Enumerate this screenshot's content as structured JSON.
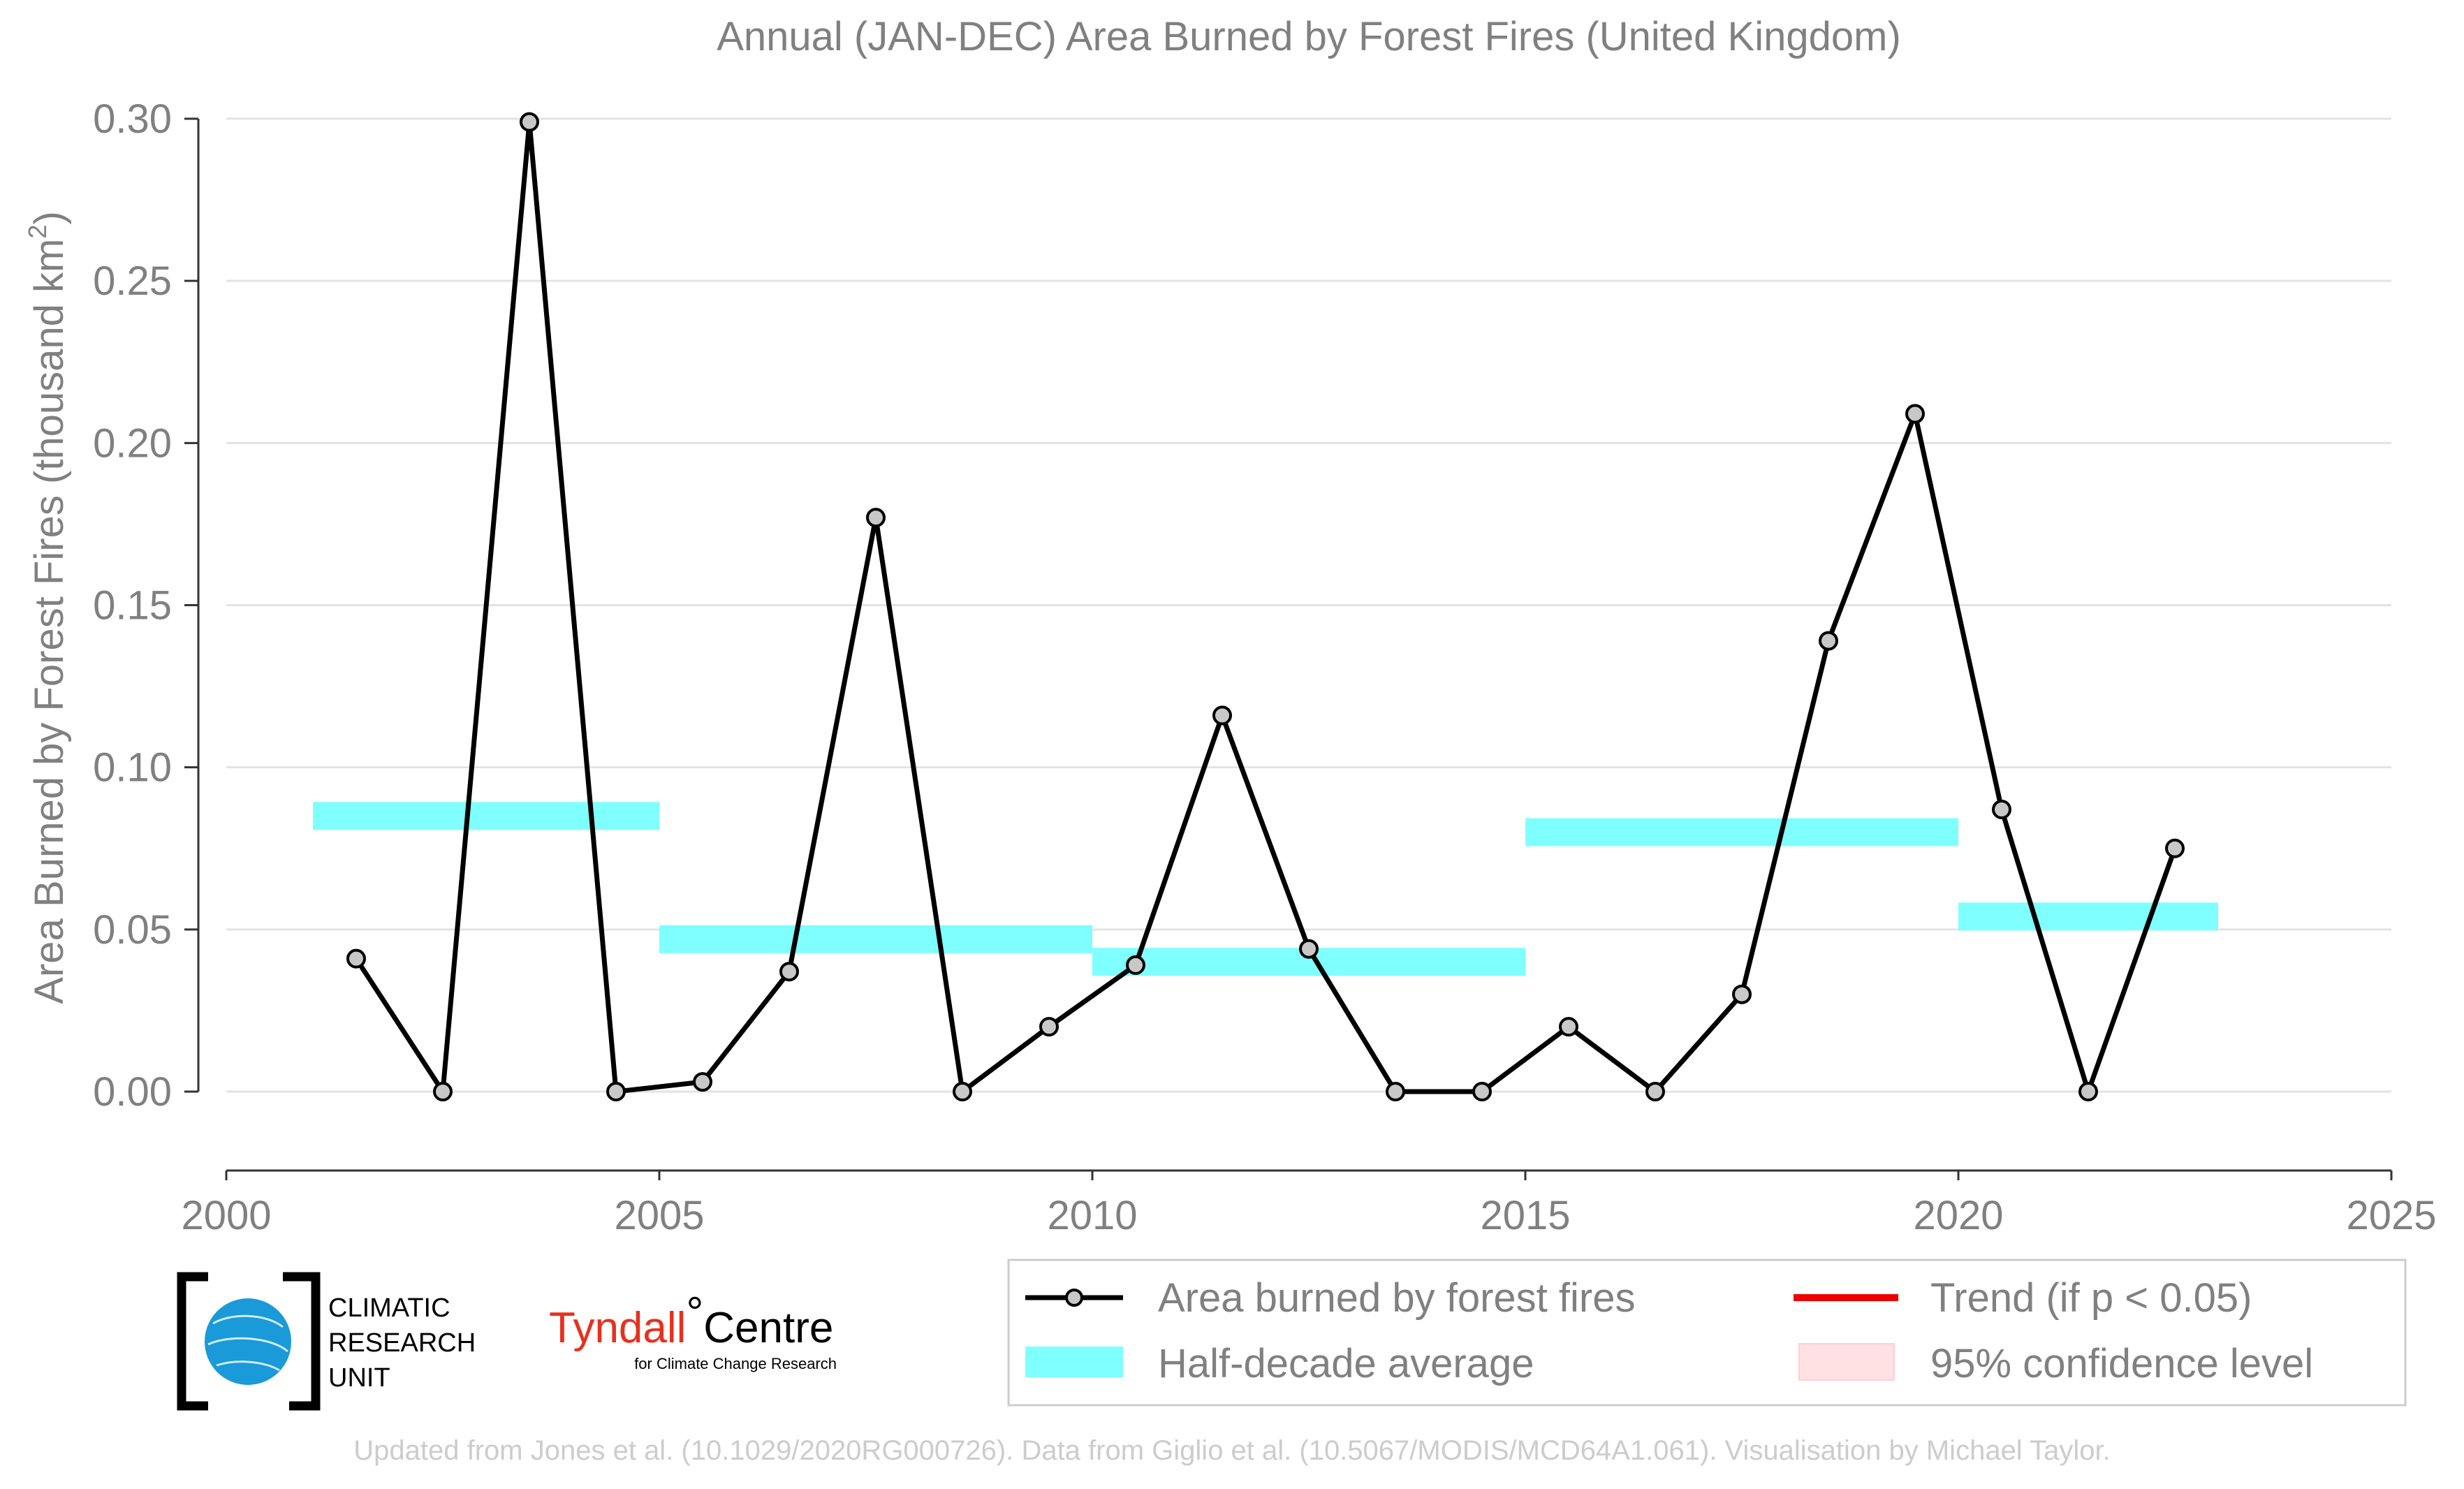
{
  "chart_data": {
    "type": "line",
    "title": "Annual (JAN-DEC) Area Burned by Forest Fires (United Kingdom)",
    "ylabel": "Area Burned by Forest Fires (thousand km",
    "ylabel_superscript": "2",
    "ylabel_close": ")",
    "xlim": [
      2000,
      2025
    ],
    "ylim": [
      0,
      0.3
    ],
    "x_ticks": [
      2000,
      2005,
      2010,
      2015,
      2020,
      2025
    ],
    "x_tick_labels": [
      "2000",
      "2005",
      "2010",
      "2015",
      "2020",
      "2025"
    ],
    "y_ticks": [
      0,
      0.05,
      0.1,
      0.15,
      0.2,
      0.25,
      0.3
    ],
    "y_tick_labels": [
      "0.00",
      "0.05",
      "0.10",
      "0.15",
      "0.20",
      "0.25",
      "0.30"
    ],
    "grid": true,
    "legend_position": "bottom-right",
    "series": [
      {
        "name": "Area burned by forest fires",
        "type": "line-markers",
        "color": "#000000",
        "marker_fill": "#c8c8c8",
        "x": [
          2001.5,
          2002.5,
          2003.5,
          2004.5,
          2005.5,
          2006.5,
          2007.5,
          2008.5,
          2009.5,
          2010.5,
          2011.5,
          2012.5,
          2013.5,
          2014.5,
          2015.5,
          2016.5,
          2017.5,
          2018.5,
          2019.5,
          2020.5,
          2021.5,
          2022.5
        ],
        "values": [
          0.041,
          0.0,
          0.299,
          0.0,
          0.003,
          0.037,
          0.177,
          0.0,
          0.02,
          0.039,
          0.116,
          0.044,
          0.0,
          0.0,
          0.02,
          0.0,
          0.03,
          0.139,
          0.209,
          0.087,
          0.0,
          0.075
        ]
      },
      {
        "name": "Half-decade average",
        "type": "step-bar",
        "color": "#7fffff",
        "segments": [
          {
            "x0": 2001,
            "x1": 2005,
            "y": 0.085
          },
          {
            "x0": 2005,
            "x1": 2010,
            "y": 0.047
          },
          {
            "x0": 2010,
            "x1": 2015,
            "y": 0.04
          },
          {
            "x0": 2015,
            "x1": 2020,
            "y": 0.08
          },
          {
            "x0": 2020,
            "x1": 2023,
            "y": 0.054
          }
        ]
      }
    ],
    "legend": [
      {
        "label": "Area burned by forest fires",
        "kind": "line-marker",
        "color": "#000000"
      },
      {
        "label": "Trend (if p < 0.05)",
        "kind": "line",
        "color": "#ee0000"
      },
      {
        "label": "Half-decade average",
        "kind": "band",
        "color": "#7fffff"
      },
      {
        "label": "95% confidence level",
        "kind": "band",
        "color": "#ffe0e3"
      }
    ]
  },
  "logos": {
    "cru_line1": "CLIMATIC",
    "cru_line2": "RESEARCH",
    "cru_line3": "UNIT",
    "tyndall_main": "Tyndall",
    "tyndall_degree": "°",
    "tyndall_centre": "Centre",
    "tyndall_sub": "for Climate Change Research"
  },
  "credit": "Updated from Jones et al. (10.1029/2020RG000726). Data from Giglio et al. (10.5067/MODIS/MCD64A1.061). Visualisation by Michael Taylor."
}
